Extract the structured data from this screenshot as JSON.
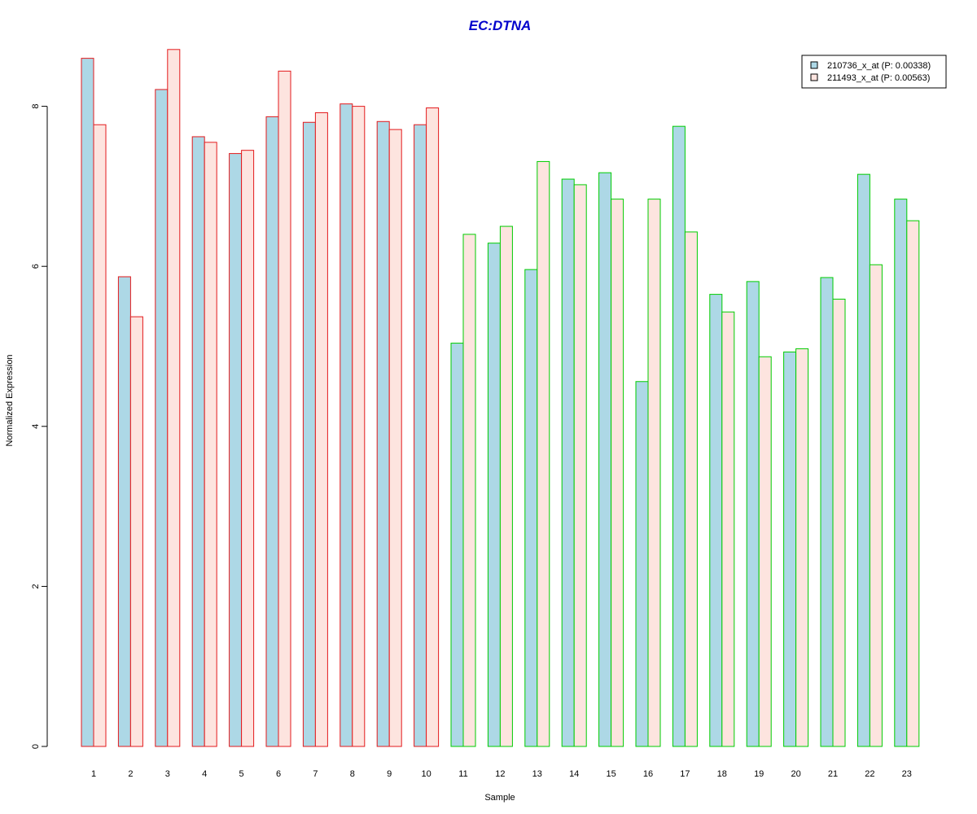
{
  "chart_data": {
    "type": "bar",
    "title": "EC:DTNA",
    "xlabel": "Sample",
    "ylabel": "Normalized Expression",
    "ylim": [
      0,
      8.7
    ],
    "yticks": [
      0,
      2,
      4,
      6,
      8
    ],
    "grid": false,
    "legend_position": "top-right",
    "categories": [
      "1",
      "2",
      "3",
      "4",
      "5",
      "6",
      "7",
      "8",
      "9",
      "10",
      "11",
      "12",
      "13",
      "14",
      "15",
      "16",
      "17",
      "18",
      "19",
      "20",
      "21",
      "22",
      "23"
    ],
    "group_border_colors": [
      "#e31a1c",
      "#e31a1c",
      "#e31a1c",
      "#e31a1c",
      "#e31a1c",
      "#e31a1c",
      "#e31a1c",
      "#e31a1c",
      "#e31a1c",
      "#e31a1c",
      "#00cc00",
      "#00cc00",
      "#00cc00",
      "#00cc00",
      "#00cc00",
      "#00cc00",
      "#00cc00",
      "#00cc00",
      "#00cc00",
      "#00cc00",
      "#00cc00",
      "#00cc00",
      "#00cc00"
    ],
    "series": [
      {
        "name": "210736_x_at (P: 0.00338)",
        "color": "#add8e6",
        "values": [
          8.6,
          5.87,
          8.21,
          7.62,
          7.41,
          7.87,
          7.8,
          8.03,
          7.81,
          7.77,
          5.04,
          6.29,
          5.96,
          7.09,
          7.17,
          4.56,
          7.75,
          5.65,
          5.81,
          4.93,
          5.86,
          7.15,
          6.84
        ]
      },
      {
        "name": "211493_x_at (P: 0.00563)",
        "color": "#fde4df",
        "values": [
          7.77,
          5.37,
          8.71,
          7.55,
          7.45,
          8.44,
          7.92,
          8.0,
          7.71,
          7.98,
          6.4,
          6.5,
          7.31,
          7.02,
          6.84,
          6.84,
          6.43,
          5.43,
          4.87,
          4.97,
          5.59,
          6.02,
          6.57
        ]
      }
    ]
  },
  "colors": {
    "title": "#0000cc",
    "axis": "#000000"
  }
}
